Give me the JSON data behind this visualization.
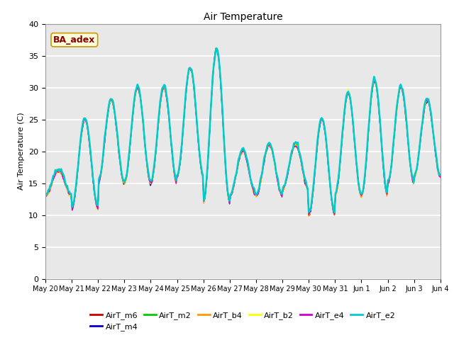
{
  "title": "Air Temperature",
  "ylabel": "Air Temperature (C)",
  "xlabel": "",
  "ylim": [
    0,
    40
  ],
  "annotation_text": "BA_adex",
  "annotation_bg": "#ffffdd",
  "annotation_border": "#cc9900",
  "annotation_text_color": "#880000",
  "bg_color": "#e8e8e8",
  "legend_entries": [
    {
      "label": "AirT_m6",
      "color": "#cc0000"
    },
    {
      "label": "AirT_m4",
      "color": "#0000cc"
    },
    {
      "label": "AirT_m2",
      "color": "#00cc00"
    },
    {
      "label": "AirT_b4",
      "color": "#ff9900"
    },
    {
      "label": "AirT_b2",
      "color": "#ffff00"
    },
    {
      "label": "AirT_e4",
      "color": "#cc00cc"
    },
    {
      "label": "AirT_e2",
      "color": "#00cccc"
    }
  ],
  "x_tick_labels": [
    "May 20",
    "May 21",
    "May 22",
    "May 23",
    "May 24",
    "May 25",
    "May 26",
    "May 27",
    "May 28",
    "May 29",
    "May 30",
    "May 31",
    "Jun 1",
    "Jun 2",
    "Jun 3",
    "Jun 4"
  ],
  "peaks": [
    17,
    25,
    28,
    30,
    30,
    33,
    36,
    20,
    21,
    21,
    25,
    29,
    31,
    30,
    28,
    17
  ],
  "troughs": [
    13,
    11,
    15,
    15,
    15,
    16,
    12,
    13,
    13,
    14,
    10,
    13,
    13,
    15,
    16,
    16
  ],
  "figsize": [
    6.4,
    4.8
  ],
  "dpi": 100
}
